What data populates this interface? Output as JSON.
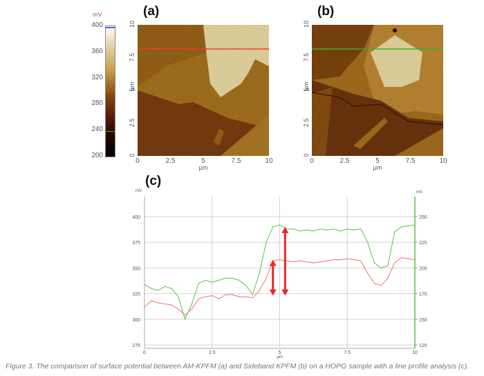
{
  "panels": {
    "a": {
      "label": "(a)",
      "profile_line_color": "#e8402a"
    },
    "b": {
      "label": "(b)",
      "profile_line_color": "#3fae2a"
    },
    "c": {
      "label": "(c)"
    }
  },
  "colorbar": {
    "unit": "mV",
    "ticks": [
      "400",
      "360",
      "320",
      "280",
      "240",
      "200"
    ],
    "range": [
      200,
      400
    ]
  },
  "image_axes": {
    "y_ticks": [
      "10",
      "7.5",
      "5",
      "2.5",
      "0"
    ],
    "x_ticks": [
      "0",
      "2.5",
      "5",
      "7.5",
      "10"
    ],
    "unit": "μm"
  },
  "chart_data": {
    "type": "line",
    "xlabel": "μm",
    "ylabel_left": "mV",
    "ylabel_right": "mV",
    "xlim": [
      0,
      10
    ],
    "ylim_left": [
      270,
      420
    ],
    "ylim_right": [
      120,
      270
    ],
    "x_ticks": [
      "0",
      "2.5",
      "5",
      "7.5",
      "10"
    ],
    "y_ticks_left": [
      "400",
      "375",
      "350",
      "325",
      "300",
      "275"
    ],
    "y_ticks_right": [
      "250",
      "225",
      "200",
      "175",
      "150",
      "125"
    ],
    "grid": true,
    "x": [
      0,
      0.25,
      0.5,
      0.75,
      1,
      1.25,
      1.5,
      1.75,
      2,
      2.25,
      2.5,
      2.75,
      3,
      3.25,
      3.5,
      3.75,
      4,
      4.25,
      4.5,
      4.75,
      5,
      5.25,
      5.5,
      5.75,
      6,
      6.25,
      6.5,
      6.75,
      7,
      7.25,
      7.5,
      7.75,
      8,
      8.25,
      8.5,
      8.75,
      9,
      9.25,
      9.5,
      9.75,
      10
    ],
    "series": [
      {
        "color": "#f07070",
        "axis": "left",
        "values": [
          312,
          318,
          316,
          315,
          314,
          310,
          304,
          310,
          320,
          322,
          323,
          320,
          324,
          324,
          322,
          322,
          321,
          328,
          340,
          357,
          358,
          357,
          356,
          357,
          356,
          355,
          356,
          357,
          358,
          358,
          359,
          358,
          357,
          345,
          335,
          333,
          340,
          355,
          360,
          359,
          358
        ]
      },
      {
        "color": "#5cc04a",
        "axis": "right",
        "values": [
          184,
          180,
          178,
          182,
          180,
          172,
          150,
          165,
          185,
          188,
          186,
          188,
          190,
          190,
          188,
          183,
          174,
          195,
          225,
          240,
          242,
          238,
          238,
          236,
          237,
          236,
          238,
          237,
          238,
          236,
          238,
          237,
          238,
          225,
          205,
          200,
          202,
          235,
          240,
          241,
          242
        ]
      }
    ],
    "annotations": [
      {
        "type": "double-arrow",
        "color": "#e8262a",
        "x": 4.75,
        "y_left": [
          323,
          358
        ]
      },
      {
        "type": "double-arrow",
        "color": "#e8262a",
        "x": 5.2,
        "y_left": [
          323,
          390
        ]
      }
    ]
  },
  "caption": "Figure 3. The comparison of surface potential between AM-KPFM (a) and Sideband KPFM (b) on a HOPG sample with a line profile analysis (c)."
}
